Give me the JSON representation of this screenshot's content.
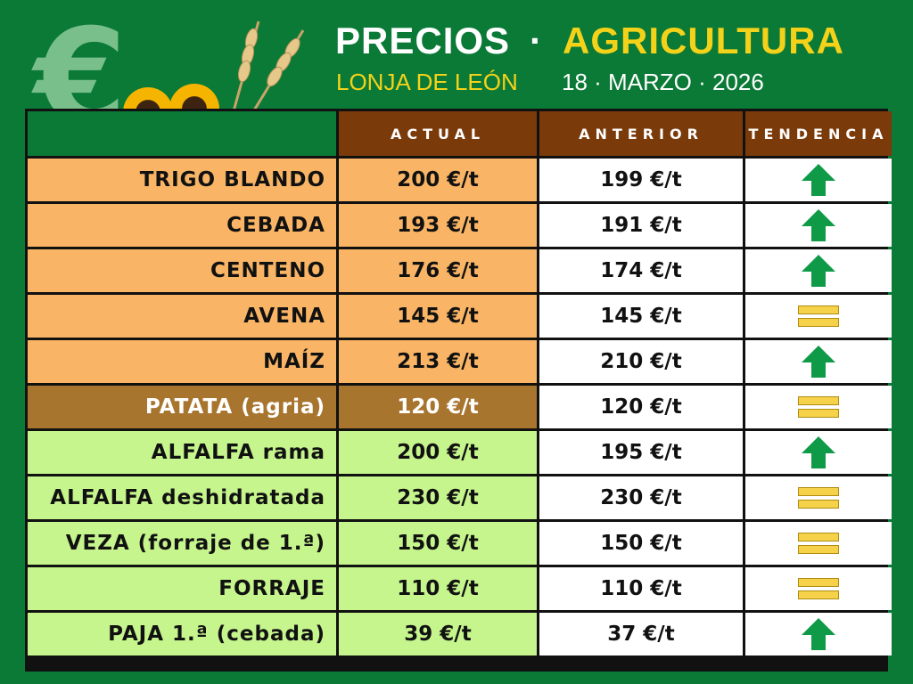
{
  "header": {
    "title_left": "PRECIOS",
    "title_separator": "·",
    "title_right": "AGRICULTURA",
    "subtitle": "LONJA DE LEÓN",
    "date": "18 · MARZO · 2026"
  },
  "columns": [
    "ACTUAL",
    "ANTERIOR",
    "TENDENCIA"
  ],
  "colors": {
    "background": "#0a7a36",
    "header_cell": "#7a3a0a",
    "cereal_row": "#f9b565",
    "potato_row": "#a8752f",
    "forage_row": "#c5f58c",
    "trend_up": "#0f9a48",
    "trend_equal": "#f5d24a"
  },
  "rows": [
    {
      "name": "TRIGO BLANDO",
      "actual": "200 €/t",
      "anterior": "199 €/t",
      "trend": "up",
      "group": "orange"
    },
    {
      "name": "CEBADA",
      "actual": "193 €/t",
      "anterior": "191 €/t",
      "trend": "up",
      "group": "orange"
    },
    {
      "name": "CENTENO",
      "actual": "176 €/t",
      "anterior": "174 €/t",
      "trend": "up",
      "group": "orange"
    },
    {
      "name": "AVENA",
      "actual": "145 €/t",
      "anterior": "145 €/t",
      "trend": "equal",
      "group": "orange"
    },
    {
      "name": "MAÍZ",
      "actual": "213 €/t",
      "anterior": "210 €/t",
      "trend": "up",
      "group": "orange"
    },
    {
      "name": "PATATA (agria)",
      "actual": "120 €/t",
      "anterior": "120 €/t",
      "trend": "equal",
      "group": "brown"
    },
    {
      "name": "ALFALFA rama",
      "actual": "200 €/t",
      "anterior": "195 €/t",
      "trend": "up",
      "group": "green"
    },
    {
      "name": "ALFALFA deshidratada",
      "actual": "230 €/t",
      "anterior": "230 €/t",
      "trend": "equal",
      "group": "green"
    },
    {
      "name": "VEZA (forraje de 1.ª)",
      "actual": "150 €/t",
      "anterior": "150 €/t",
      "trend": "equal",
      "group": "green"
    },
    {
      "name": "FORRAJE",
      "actual": "110 €/t",
      "anterior": "110 €/t",
      "trend": "equal",
      "group": "green"
    },
    {
      "name": "PAJA 1.ª (cebada)",
      "actual": "39 €/t",
      "anterior": "37 €/t",
      "trend": "up",
      "group": "green"
    }
  ]
}
